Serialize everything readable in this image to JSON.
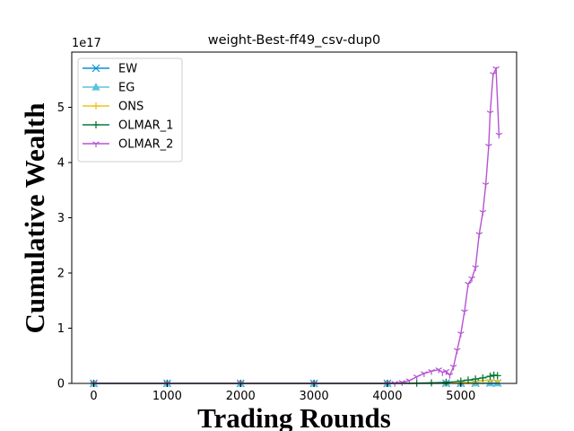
{
  "chart_data": {
    "type": "line",
    "title": "weight-Best-ff49_csv-dup0",
    "xlabel": "Trading Rounds",
    "ylabel": "Cumulative Wealth",
    "y_offset_text": "1e17",
    "xlim": [
      -300,
      5760
    ],
    "ylim": [
      0,
      6.0
    ],
    "xticks": [
      0,
      1000,
      2000,
      3000,
      4000,
      5000
    ],
    "yticks": [
      0,
      1,
      2,
      3,
      4,
      5
    ],
    "legend_position": "upper-left",
    "series": [
      {
        "name": "EW",
        "color": "#0c8fd0",
        "marker": "x",
        "x": [
          0,
          1000,
          2000,
          3000,
          4000,
          4800,
          5000,
          5200,
          5400,
          5500
        ],
        "values": [
          0,
          0,
          0,
          0,
          0,
          0.003,
          0.004,
          0.005,
          0.006,
          0.006
        ]
      },
      {
        "name": "EG",
        "color": "#5bc2e0",
        "marker": "triangle",
        "x": [
          0,
          1000,
          2000,
          3000,
          4000,
          4800,
          5000,
          5200,
          5400,
          5500
        ],
        "values": [
          0,
          0,
          0,
          0,
          0,
          0.003,
          0.004,
          0.005,
          0.006,
          0.006
        ]
      },
      {
        "name": "ONS",
        "color": "#f0c419",
        "marker": "plus",
        "x": [
          0,
          1000,
          2000,
          3000,
          4000,
          4800,
          5000,
          5200,
          5300,
          5400,
          5500
        ],
        "values": [
          0,
          0,
          0,
          0,
          0,
          0.005,
          0.01,
          0.03,
          0.05,
          0.06,
          0.05
        ]
      },
      {
        "name": "OLMAR_1",
        "color": "#0a7a3c",
        "marker": "plus",
        "x": [
          0,
          1000,
          2000,
          3000,
          4000,
          4400,
          4600,
          4800,
          5000,
          5100,
          5200,
          5300,
          5400,
          5450,
          5500
        ],
        "values": [
          0,
          0,
          0,
          0,
          0,
          0.005,
          0.01,
          0.02,
          0.04,
          0.06,
          0.08,
          0.1,
          0.13,
          0.15,
          0.14
        ]
      },
      {
        "name": "OLMAR_2",
        "color": "#b553d3",
        "marker": "tri_down",
        "x": [
          0,
          1000,
          2000,
          3000,
          4000,
          4100,
          4200,
          4300,
          4400,
          4500,
          4600,
          4700,
          4750,
          4800,
          4850,
          4900,
          4950,
          5000,
          5050,
          5100,
          5150,
          5200,
          5250,
          5300,
          5340,
          5380,
          5400,
          5440,
          5480,
          5520
        ],
        "values": [
          0,
          0,
          0,
          0,
          0,
          0.005,
          0.02,
          0.05,
          0.12,
          0.18,
          0.22,
          0.25,
          0.2,
          0.22,
          0.15,
          0.3,
          0.6,
          0.9,
          1.3,
          1.8,
          1.9,
          2.1,
          2.7,
          3.1,
          3.6,
          4.3,
          4.9,
          5.6,
          5.7,
          4.5
        ]
      }
    ]
  }
}
